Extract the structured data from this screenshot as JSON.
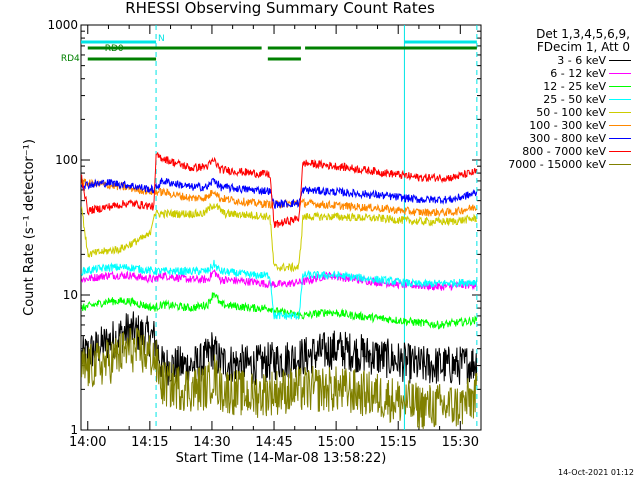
{
  "chart_data": {
    "type": "line",
    "title": "RHESSI Observing Summary Count Rates",
    "xlabel": "Start Time (14-Mar-08 13:58:22)",
    "ylabel": "Count Rate (s⁻¹ detector⁻¹)",
    "y_scale": "log",
    "ylim": [
      1,
      1000
    ],
    "xlim": [
      "13:58:22",
      "15:35:00"
    ],
    "x_ticks": [
      "14:00",
      "14:15",
      "14:30",
      "14:45",
      "15:00",
      "15:15",
      "15:30"
    ],
    "y_ticks": [
      "1",
      "10",
      "100",
      "1000"
    ],
    "legend_header": [
      "Det 1,3,4,5,6,9,",
      "FDecim 1, Att 0"
    ],
    "legend_position": "right",
    "flags": [
      {
        "name": "N",
        "color": "#00e5e5",
        "intervals": [
          [
            "13:58:22",
            "14:16:30"
          ],
          [
            "15:16:30",
            "15:34:00"
          ]
        ]
      },
      {
        "name": "RD0",
        "color": "#008000",
        "intervals": [
          [
            "14:00:00",
            "14:42:00"
          ],
          [
            "14:43:30",
            "14:51:30"
          ],
          [
            "14:52:30",
            "15:34:00"
          ]
        ]
      },
      {
        "name": "RD4",
        "color": "#008000",
        "intervals": [
          [
            "14:00:00",
            "14:16:30"
          ],
          [
            "14:43:30",
            "14:51:30"
          ]
        ]
      }
    ],
    "markers": [
      {
        "time": "14:16:30",
        "style": "dashed",
        "color": "#00e5e5"
      },
      {
        "time": "15:16:30",
        "style": "solid",
        "color": "#00e5e5"
      },
      {
        "time": "15:34:00",
        "style": "dashed",
        "color": "#00e5e5"
      }
    ],
    "series": [
      {
        "name": "3 - 6 keV",
        "color": "#000000",
        "points": [
          [
            "13:58:30",
            3.5
          ],
          [
            "14:05",
            4.5
          ],
          [
            "14:10",
            5.5
          ],
          [
            "14:16",
            4.8
          ],
          [
            "14:18",
            3.0
          ],
          [
            "14:25",
            3.0
          ],
          [
            "14:28",
            3.2
          ],
          [
            "14:30",
            4.0
          ],
          [
            "14:32",
            3.2
          ],
          [
            "14:40",
            3.0
          ],
          [
            "14:44",
            3.2
          ],
          [
            "14:47",
            3.3
          ],
          [
            "14:52",
            3.5
          ],
          [
            "15:00",
            4.0
          ],
          [
            "15:10",
            3.5
          ],
          [
            "15:20",
            3.0
          ],
          [
            "15:30",
            3.0
          ],
          [
            "15:34",
            3.2
          ]
        ]
      },
      {
        "name": "6 - 12 keV",
        "color": "#ff00ff",
        "points": [
          [
            "13:58:30",
            13
          ],
          [
            "14:05",
            14
          ],
          [
            "14:10",
            14
          ],
          [
            "14:16",
            13
          ],
          [
            "14:18",
            14
          ],
          [
            "14:25",
            13
          ],
          [
            "14:29",
            13
          ],
          [
            "14:30:30",
            15
          ],
          [
            "14:32",
            13
          ],
          [
            "14:40",
            12.5
          ],
          [
            "14:44",
            12
          ],
          [
            "14:47",
            12
          ],
          [
            "14:52",
            12.5
          ],
          [
            "14:58",
            14
          ],
          [
            "15:05",
            13
          ],
          [
            "15:15",
            12
          ],
          [
            "15:25",
            11.5
          ],
          [
            "15:34",
            12
          ]
        ]
      },
      {
        "name": "12 - 25 keV",
        "color": "#00ff00",
        "points": [
          [
            "13:58:30",
            8
          ],
          [
            "14:05",
            9
          ],
          [
            "14:10",
            9
          ],
          [
            "14:16",
            8
          ],
          [
            "14:18",
            8.5
          ],
          [
            "14:25",
            8
          ],
          [
            "14:29",
            8.5
          ],
          [
            "14:30:30",
            10.5
          ],
          [
            "14:32",
            8.5
          ],
          [
            "14:40",
            8
          ],
          [
            "14:44",
            8
          ],
          [
            "14:46",
            7.5
          ],
          [
            "14:52",
            7
          ],
          [
            "14:58",
            7.5
          ],
          [
            "15:05",
            7
          ],
          [
            "15:15",
            6.5
          ],
          [
            "15:25",
            6
          ],
          [
            "15:34",
            6.5
          ]
        ]
      },
      {
        "name": "25 - 50 keV",
        "color": "#00ffff",
        "points": [
          [
            "13:58:30",
            15
          ],
          [
            "14:05",
            16
          ],
          [
            "14:10",
            16
          ],
          [
            "14:16",
            15
          ],
          [
            "14:18",
            15
          ],
          [
            "14:25",
            15
          ],
          [
            "14:29",
            15
          ],
          [
            "14:30:30",
            17
          ],
          [
            "14:32",
            15
          ],
          [
            "14:40",
            14
          ],
          [
            "14:44",
            14
          ],
          [
            "14:45",
            7
          ],
          [
            "14:51",
            7
          ],
          [
            "14:52",
            14
          ],
          [
            "15:00",
            14
          ],
          [
            "15:10",
            13
          ],
          [
            "15:20",
            12
          ],
          [
            "15:34",
            12.5
          ]
        ]
      },
      {
        "name": "50 - 100 keV",
        "color": "#cccc00",
        "points": [
          [
            "13:58:30",
            45
          ],
          [
            "14:00",
            20
          ],
          [
            "14:08",
            22
          ],
          [
            "14:15",
            28
          ],
          [
            "14:16",
            40
          ],
          [
            "14:20",
            40
          ],
          [
            "14:28",
            40
          ],
          [
            "14:30:30",
            47
          ],
          [
            "14:33",
            40
          ],
          [
            "14:40",
            39
          ],
          [
            "14:44",
            38
          ],
          [
            "14:45",
            16
          ],
          [
            "14:51",
            16
          ],
          [
            "14:52",
            38
          ],
          [
            "15:00",
            38
          ],
          [
            "15:10",
            37
          ],
          [
            "15:20",
            35
          ],
          [
            "15:28",
            35
          ],
          [
            "15:34",
            37
          ]
        ]
      },
      {
        "name": "100 - 300 keV",
        "color": "#ff8800",
        "points": [
          [
            "13:58:30",
            68
          ],
          [
            "14:05",
            65
          ],
          [
            "14:10",
            62
          ],
          [
            "14:16",
            58
          ],
          [
            "14:18",
            58
          ],
          [
            "14:25",
            52
          ],
          [
            "14:29",
            53
          ],
          [
            "14:30:30",
            60
          ],
          [
            "14:32",
            52
          ],
          [
            "14:40",
            48
          ],
          [
            "14:44",
            47
          ],
          [
            "14:46",
            47
          ],
          [
            "14:52",
            48
          ],
          [
            "15:00",
            46
          ],
          [
            "15:10",
            44
          ],
          [
            "15:20",
            41
          ],
          [
            "15:28",
            41
          ],
          [
            "15:34",
            45
          ]
        ]
      },
      {
        "name": "300 - 800 keV",
        "color": "#0000ff",
        "points": [
          [
            "13:58:30",
            65
          ],
          [
            "14:05",
            68
          ],
          [
            "14:10",
            65
          ],
          [
            "14:16",
            60
          ],
          [
            "14:18",
            70
          ],
          [
            "14:25",
            63
          ],
          [
            "14:29",
            63
          ],
          [
            "14:30:30",
            72
          ],
          [
            "14:32",
            63
          ],
          [
            "14:40",
            60
          ],
          [
            "14:44",
            59
          ],
          [
            "14:45",
            47
          ],
          [
            "14:51",
            48
          ],
          [
            "14:52",
            60
          ],
          [
            "15:00",
            58
          ],
          [
            "15:10",
            55
          ],
          [
            "15:20",
            51
          ],
          [
            "15:28",
            51
          ],
          [
            "15:34",
            57
          ]
        ]
      },
      {
        "name": "800 - 7000 keV",
        "color": "#ff0000",
        "points": [
          [
            "13:58:30",
            75
          ],
          [
            "14:00",
            42
          ],
          [
            "14:05",
            45
          ],
          [
            "14:10",
            48
          ],
          [
            "14:16",
            45
          ],
          [
            "14:16:30",
            108
          ],
          [
            "14:20",
            98
          ],
          [
            "14:25",
            87
          ],
          [
            "14:29",
            90
          ],
          [
            "14:30:30",
            100
          ],
          [
            "14:32",
            85
          ],
          [
            "14:40",
            80
          ],
          [
            "14:44",
            78
          ],
          [
            "14:45",
            33
          ],
          [
            "14:51",
            37
          ],
          [
            "14:52",
            95
          ],
          [
            "15:00",
            90
          ],
          [
            "15:10",
            82
          ],
          [
            "15:20",
            74
          ],
          [
            "15:28",
            74
          ],
          [
            "15:34",
            82
          ]
        ]
      },
      {
        "name": "7000 - 15000 keV",
        "color": "#808000",
        "points": [
          [
            "13:58:30",
            2.8
          ],
          [
            "14:05",
            3.2
          ],
          [
            "14:10",
            4.0
          ],
          [
            "14:16",
            3.5
          ],
          [
            "14:18",
            2.2
          ],
          [
            "14:25",
            2.0
          ],
          [
            "14:29",
            2.1
          ],
          [
            "14:30:30",
            2.6
          ],
          [
            "14:32",
            2.0
          ],
          [
            "14:40",
            1.8
          ],
          [
            "14:44",
            1.9
          ],
          [
            "14:52",
            2.0
          ],
          [
            "15:00",
            2.0
          ],
          [
            "15:10",
            1.8
          ],
          [
            "15:20",
            1.5
          ],
          [
            "15:30",
            1.5
          ],
          [
            "15:34",
            1.8
          ]
        ]
      }
    ]
  },
  "stamp": "14-Oct-2021 01:12"
}
